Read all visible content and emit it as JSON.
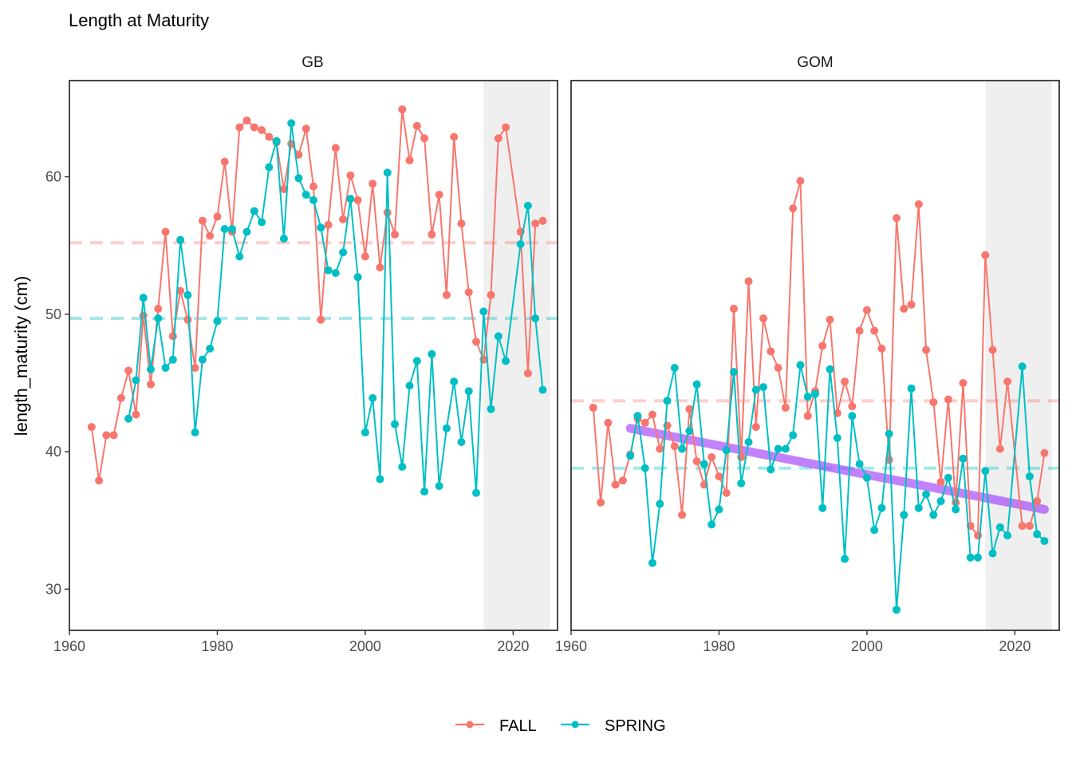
{
  "chart_data": {
    "type": "line",
    "title": "Length at Maturity",
    "ylabel": "length_maturity (cm)",
    "xlabel": "",
    "xlim": [
      1960,
      2026
    ],
    "ylim": [
      27,
      67
    ],
    "x_ticks": [
      1960,
      1980,
      2000,
      2020
    ],
    "y_ticks": [
      30,
      40,
      50,
      60
    ],
    "legend": {
      "position": "bottom",
      "entries": [
        "FALL",
        "SPRING"
      ]
    },
    "colors": {
      "FALL": "#F8766D",
      "SPRING": "#00BFC4",
      "trend": "#9B30FF",
      "shade": "#EBEBEB"
    },
    "shaded_range": [
      2016,
      2025
    ],
    "panels": [
      {
        "name": "GB",
        "mean_lines": {
          "FALL": 55.2,
          "SPRING": 49.7
        },
        "series": [
          {
            "name": "FALL",
            "x": [
              1963,
              1964,
              1965,
              1966,
              1967,
              1968,
              1969,
              1970,
              1971,
              1972,
              1973,
              1974,
              1975,
              1976,
              1977,
              1978,
              1979,
              1980,
              1981,
              1982,
              1983,
              1984,
              1985,
              1986,
              1987,
              1988,
              1989,
              1990,
              1991,
              1992,
              1993,
              1994,
              1995,
              1996,
              1997,
              1998,
              1999,
              2000,
              2001,
              2002,
              2003,
              2004,
              2005,
              2006,
              2007,
              2008,
              2009,
              2010,
              2011,
              2012,
              2013,
              2014,
              2015,
              2016,
              2017,
              2018,
              2019,
              2021,
              2022,
              2023,
              2024
            ],
            "y": [
              41.8,
              37.9,
              41.2,
              41.2,
              43.9,
              45.9,
              42.7,
              49.9,
              44.9,
              50.4,
              56.0,
              48.4,
              51.7,
              49.6,
              46.1,
              56.8,
              55.7,
              57.1,
              61.1,
              56.0,
              63.6,
              64.1,
              63.6,
              63.4,
              62.9,
              62.5,
              59.1,
              62.4,
              61.6,
              63.5,
              59.3,
              49.6,
              56.5,
              62.1,
              56.9,
              60.1,
              58.3,
              54.2,
              59.5,
              53.4,
              57.4,
              55.8,
              64.9,
              61.2,
              63.7,
              62.8,
              55.8,
              58.7,
              51.4,
              62.9,
              56.6,
              51.6,
              48.0,
              46.7,
              51.4,
              62.8,
              63.6,
              56.0,
              45.7,
              56.6,
              56.8
            ]
          },
          {
            "name": "SPRING",
            "x": [
              1968,
              1969,
              1970,
              1971,
              1972,
              1973,
              1974,
              1975,
              1976,
              1977,
              1978,
              1979,
              1980,
              1981,
              1982,
              1983,
              1984,
              1985,
              1986,
              1987,
              1988,
              1989,
              1990,
              1991,
              1992,
              1993,
              1994,
              1995,
              1996,
              1997,
              1998,
              1999,
              2000,
              2001,
              2002,
              2003,
              2004,
              2005,
              2006,
              2007,
              2008,
              2009,
              2010,
              2011,
              2012,
              2013,
              2014,
              2015,
              2016,
              2017,
              2018,
              2019,
              2021,
              2022,
              2023,
              2024
            ],
            "y": [
              42.4,
              45.2,
              51.2,
              46.0,
              49.7,
              46.1,
              46.7,
              55.4,
              51.4,
              41.4,
              46.7,
              47.5,
              49.5,
              56.2,
              56.2,
              54.2,
              56.0,
              57.5,
              56.7,
              60.7,
              62.6,
              55.5,
              63.9,
              59.9,
              58.7,
              58.3,
              56.3,
              53.2,
              53.0,
              54.5,
              58.4,
              52.7,
              41.4,
              43.9,
              38.0,
              60.3,
              42.0,
              38.9,
              44.8,
              46.6,
              37.1,
              47.1,
              37.5,
              41.7,
              45.1,
              40.7,
              44.4,
              37.0,
              50.2,
              43.1,
              48.4,
              46.6,
              55.1,
              57.9,
              49.7,
              44.5
            ]
          }
        ]
      },
      {
        "name": "GOM",
        "mean_lines": {
          "FALL": 43.7,
          "SPRING": 38.8
        },
        "trend_line": {
          "x": [
            1968,
            2024
          ],
          "y": [
            41.7,
            35.8
          ]
        },
        "series": [
          {
            "name": "FALL",
            "x": [
              1963,
              1964,
              1965,
              1966,
              1967,
              1968,
              1969,
              1970,
              1971,
              1972,
              1973,
              1974,
              1975,
              1976,
              1977,
              1978,
              1979,
              1980,
              1981,
              1982,
              1983,
              1984,
              1985,
              1986,
              1987,
              1988,
              1989,
              1990,
              1991,
              1992,
              1993,
              1994,
              1995,
              1996,
              1997,
              1998,
              1999,
              2000,
              2001,
              2002,
              2003,
              2004,
              2005,
              2006,
              2007,
              2008,
              2009,
              2010,
              2011,
              2012,
              2013,
              2014,
              2015,
              2016,
              2017,
              2018,
              2019,
              2021,
              2022,
              2023,
              2024
            ],
            "y": [
              43.2,
              36.3,
              42.1,
              37.6,
              37.9,
              39.8,
              42.4,
              42.1,
              42.7,
              40.2,
              41.9,
              40.4,
              35.4,
              43.1,
              39.3,
              37.6,
              39.6,
              38.2,
              37.0,
              50.4,
              39.6,
              52.4,
              41.8,
              49.7,
              47.3,
              46.1,
              43.2,
              57.7,
              59.7,
              42.6,
              44.4,
              47.7,
              49.6,
              42.8,
              45.1,
              43.3,
              48.8,
              50.3,
              48.8,
              47.5,
              39.4,
              57.0,
              50.4,
              50.7,
              58.0,
              47.4,
              43.6,
              37.8,
              43.8,
              36.3,
              45.0,
              34.6,
              33.9,
              54.3,
              47.4,
              40.2,
              45.1,
              34.6,
              34.6,
              36.4,
              39.9
            ]
          },
          {
            "name": "SPRING",
            "x": [
              1968,
              1969,
              1970,
              1971,
              1972,
              1973,
              1974,
              1975,
              1976,
              1977,
              1978,
              1979,
              1980,
              1981,
              1982,
              1983,
              1984,
              1985,
              1986,
              1987,
              1988,
              1989,
              1990,
              1991,
              1992,
              1993,
              1994,
              1995,
              1996,
              1997,
              1998,
              1999,
              2000,
              2001,
              2002,
              2003,
              2004,
              2005,
              2006,
              2007,
              2008,
              2009,
              2010,
              2011,
              2012,
              2013,
              2014,
              2015,
              2016,
              2017,
              2018,
              2019,
              2021,
              2022,
              2023,
              2024
            ],
            "y": [
              39.7,
              42.6,
              38.8,
              31.9,
              36.2,
              43.7,
              46.1,
              40.2,
              41.5,
              44.9,
              39.1,
              34.7,
              35.8,
              40.1,
              45.8,
              37.7,
              40.7,
              44.5,
              44.7,
              38.7,
              40.2,
              40.2,
              41.2,
              46.3,
              44.0,
              44.2,
              35.9,
              46.0,
              41.0,
              32.2,
              42.6,
              39.1,
              38.1,
              34.3,
              35.9,
              41.3,
              28.5,
              35.4,
              44.6,
              35.9,
              36.9,
              35.4,
              36.4,
              38.1,
              35.8,
              39.5,
              32.3,
              32.3,
              38.6,
              32.6,
              34.5,
              33.9,
              46.2,
              38.2,
              34.0,
              33.5
            ]
          }
        ]
      }
    ]
  }
}
